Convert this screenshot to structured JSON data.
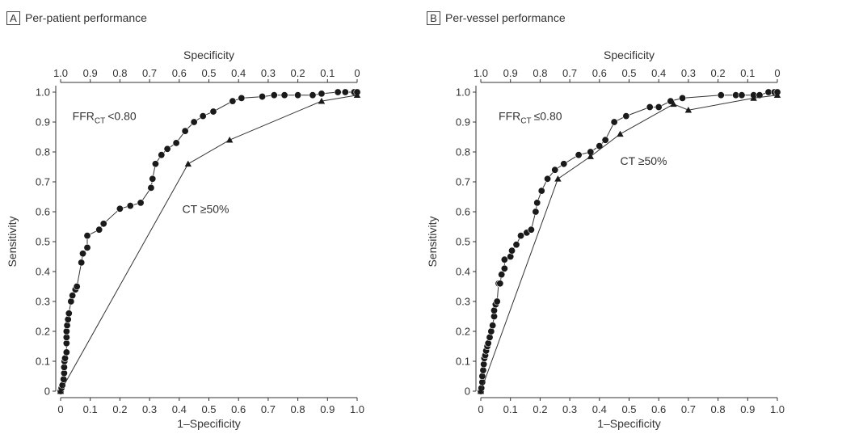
{
  "chart_data": [
    {
      "type": "line",
      "panel_letter": "A",
      "title": "Per-patient performance",
      "xlabel": "1–Specificity",
      "ylabel": "Sensitivity",
      "x2label": "Specificity",
      "xlim": [
        0,
        1
      ],
      "ylim": [
        0,
        1
      ],
      "xticks": [
        0,
        0.1,
        0.2,
        0.3,
        0.4,
        0.5,
        0.6,
        0.7,
        0.8,
        0.9,
        1.0
      ],
      "xtick_labels": [
        "0",
        "0.1",
        "0.2",
        "0.3",
        "0.4",
        "0.5",
        "0.6",
        "0.7",
        "0.8",
        "0.9",
        "1.0"
      ],
      "x2tick_labels": [
        "1.0",
        "0.9",
        "0.8",
        "0.7",
        "0.6",
        "0.5",
        "0.4",
        "0.3",
        "0.2",
        "0.1",
        "0"
      ],
      "yticks": [
        0,
        0.1,
        0.2,
        0.3,
        0.4,
        0.5,
        0.6,
        0.7,
        0.8,
        0.9,
        1.0
      ],
      "ytick_labels": [
        "0",
        "0.1",
        "0.2",
        "0.3",
        "0.4",
        "0.5",
        "0.6",
        "0.7",
        "0.8",
        "0.9",
        "1.0"
      ],
      "grid": false,
      "series": [
        {
          "name": "FFR",
          "name_sub": "CT",
          "name_suffix": "<0.80",
          "label_position": [
            0.04,
            0.92
          ],
          "marker": "circle",
          "points": [
            [
              0,
              0
            ],
            [
              0.003,
              0.01
            ],
            [
              0.006,
              0.02
            ],
            [
              0.01,
              0.04
            ],
            [
              0.012,
              0.06
            ],
            [
              0.012,
              0.08
            ],
            [
              0.013,
              0.1
            ],
            [
              0.015,
              0.11
            ],
            [
              0.02,
              0.13
            ],
            [
              0.02,
              0.16
            ],
            [
              0.02,
              0.18
            ],
            [
              0.02,
              0.2
            ],
            [
              0.022,
              0.22
            ],
            [
              0.025,
              0.24
            ],
            [
              0.028,
              0.26
            ],
            [
              0.035,
              0.3
            ],
            [
              0.04,
              0.32
            ],
            [
              0.05,
              0.34
            ],
            [
              0.055,
              0.35
            ],
            [
              0.07,
              0.43
            ],
            [
              0.075,
              0.46
            ],
            [
              0.09,
              0.48
            ],
            [
              0.09,
              0.52
            ],
            [
              0.13,
              0.54
            ],
            [
              0.145,
              0.56
            ],
            [
              0.2,
              0.61
            ],
            [
              0.235,
              0.62
            ],
            [
              0.27,
              0.63
            ],
            [
              0.305,
              0.68
            ],
            [
              0.31,
              0.71
            ],
            [
              0.32,
              0.76
            ],
            [
              0.34,
              0.79
            ],
            [
              0.36,
              0.81
            ],
            [
              0.39,
              0.83
            ],
            [
              0.42,
              0.87
            ],
            [
              0.45,
              0.9
            ],
            [
              0.48,
              0.92
            ],
            [
              0.515,
              0.935
            ],
            [
              0.58,
              0.97
            ],
            [
              0.61,
              0.98
            ],
            [
              0.68,
              0.985
            ],
            [
              0.72,
              0.99
            ],
            [
              0.755,
              0.99
            ],
            [
              0.8,
              0.99
            ],
            [
              0.85,
              0.99
            ],
            [
              0.88,
              0.995
            ],
            [
              0.935,
              1.0
            ],
            [
              0.96,
              1.0
            ],
            [
              0.99,
              1.0
            ],
            [
              1.0,
              1.0
            ]
          ]
        },
        {
          "name": "CT ≥50%",
          "label_position": [
            0.41,
            0.61
          ],
          "marker": "triangle",
          "points": [
            [
              0,
              0
            ],
            [
              0.43,
              0.76
            ],
            [
              0.57,
              0.84
            ],
            [
              0.88,
              0.97
            ],
            [
              1.0,
              0.99
            ]
          ]
        }
      ]
    },
    {
      "type": "line",
      "panel_letter": "B",
      "title": "Per-vessel performance",
      "xlabel": "1–Specificity",
      "ylabel": "Sensitivity",
      "x2label": "Specificity",
      "xlim": [
        0,
        1
      ],
      "ylim": [
        0,
        1
      ],
      "xticks": [
        0,
        0.1,
        0.2,
        0.3,
        0.4,
        0.5,
        0.6,
        0.7,
        0.8,
        0.9,
        1.0
      ],
      "xtick_labels": [
        "0",
        "0.1",
        "0.2",
        "0.3",
        "0.4",
        "0.5",
        "0.6",
        "0.7",
        "0.8",
        "0.9",
        "1.0"
      ],
      "x2tick_labels": [
        "1.0",
        "0.9",
        "0.8",
        "0.7",
        "0.6",
        "0.5",
        "0.4",
        "0.3",
        "0.2",
        "0.1",
        "0"
      ],
      "yticks": [
        0,
        0.1,
        0.2,
        0.3,
        0.4,
        0.5,
        0.6,
        0.7,
        0.8,
        0.9,
        1.0
      ],
      "ytick_labels": [
        "0",
        "0.1",
        "0.2",
        "0.3",
        "0.4",
        "0.5",
        "0.6",
        "0.7",
        "0.8",
        "0.9",
        "1.0"
      ],
      "grid": false,
      "series": [
        {
          "name": "FFR",
          "name_sub": "CT",
          "name_suffix": "≤0.80",
          "label_position": [
            0.06,
            0.92
          ],
          "marker": "circle",
          "points": [
            [
              0,
              0
            ],
            [
              0.002,
              0.01
            ],
            [
              0.005,
              0.03
            ],
            [
              0.005,
              0.05
            ],
            [
              0.008,
              0.07
            ],
            [
              0.01,
              0.09
            ],
            [
              0.012,
              0.11
            ],
            [
              0.015,
              0.12
            ],
            [
              0.018,
              0.135
            ],
            [
              0.022,
              0.15
            ],
            [
              0.025,
              0.16
            ],
            [
              0.03,
              0.18
            ],
            [
              0.035,
              0.2
            ],
            [
              0.04,
              0.22
            ],
            [
              0.045,
              0.25
            ],
            [
              0.045,
              0.27
            ],
            [
              0.05,
              0.29
            ],
            [
              0.055,
              0.3
            ],
            [
              0.06,
              0.36
            ],
            [
              0.065,
              0.36
            ],
            [
              0.07,
              0.39
            ],
            [
              0.08,
              0.41
            ],
            [
              0.08,
              0.44
            ],
            [
              0.1,
              0.45
            ],
            [
              0.105,
              0.47
            ],
            [
              0.12,
              0.49
            ],
            [
              0.135,
              0.52
            ],
            [
              0.155,
              0.53
            ],
            [
              0.17,
              0.54
            ],
            [
              0.185,
              0.6
            ],
            [
              0.19,
              0.63
            ],
            [
              0.205,
              0.67
            ],
            [
              0.225,
              0.71
            ],
            [
              0.25,
              0.74
            ],
            [
              0.28,
              0.76
            ],
            [
              0.33,
              0.79
            ],
            [
              0.37,
              0.8
            ],
            [
              0.4,
              0.82
            ],
            [
              0.42,
              0.84
            ],
            [
              0.45,
              0.9
            ],
            [
              0.49,
              0.92
            ],
            [
              0.57,
              0.95
            ],
            [
              0.6,
              0.95
            ],
            [
              0.64,
              0.97
            ],
            [
              0.68,
              0.98
            ],
            [
              0.81,
              0.99
            ],
            [
              0.86,
              0.99
            ],
            [
              0.88,
              0.99
            ],
            [
              0.92,
              0.99
            ],
            [
              0.94,
              0.99
            ],
            [
              0.97,
              1.0
            ],
            [
              0.99,
              1.0
            ],
            [
              1.0,
              1.0
            ]
          ]
        },
        {
          "name": "CT ≥50%",
          "label_position": [
            0.47,
            0.77
          ],
          "marker": "triangle",
          "points": [
            [
              0,
              0
            ],
            [
              0.26,
              0.71
            ],
            [
              0.37,
              0.785
            ],
            [
              0.47,
              0.86
            ],
            [
              0.65,
              0.96
            ],
            [
              0.7,
              0.94
            ],
            [
              0.92,
              0.98
            ],
            [
              1.0,
              0.99
            ]
          ]
        }
      ]
    }
  ]
}
